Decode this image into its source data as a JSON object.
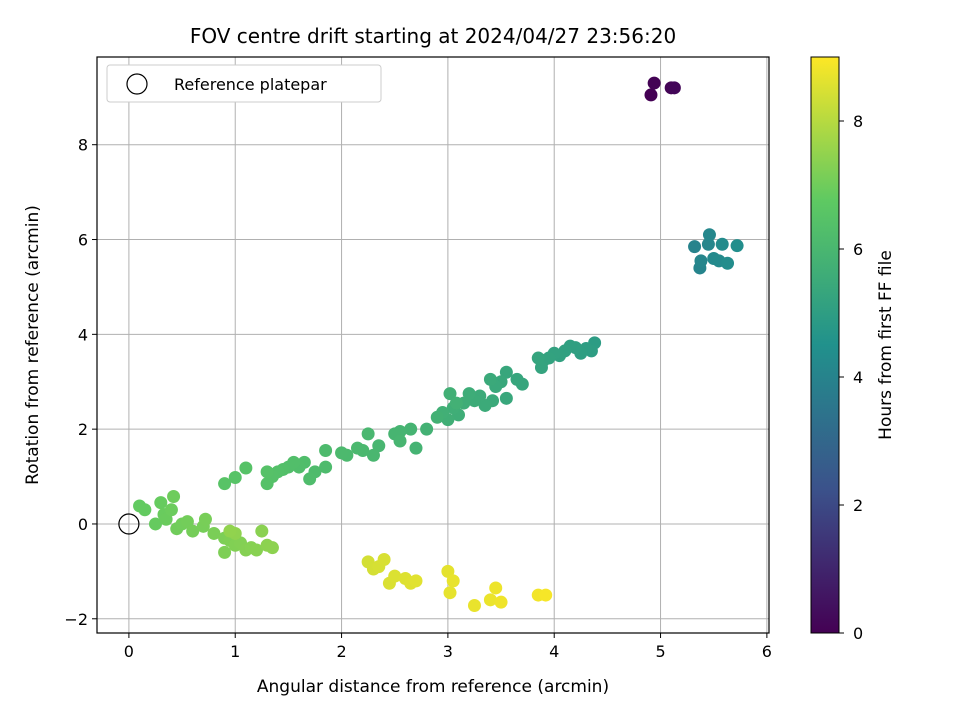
{
  "chart_data": {
    "type": "scatter",
    "title": "FOV centre drift starting at 2024/04/27 23:56:20",
    "xlabel": "Angular distance from reference (arcmin)",
    "ylabel": "Rotation from reference (arcmin)",
    "xlim": [
      -0.3,
      6.02
    ],
    "ylim": [
      -2.3,
      9.85
    ],
    "xticks": [
      0,
      1,
      2,
      3,
      4,
      5,
      6
    ],
    "yticks": [
      -2,
      0,
      2,
      4,
      6,
      8
    ],
    "grid": true,
    "legend": {
      "placement": "top-left",
      "entries": [
        "Reference platepar"
      ]
    },
    "reference_point": {
      "x": 0,
      "y": 0
    },
    "colorbar": {
      "label": "Hours from first FF file",
      "range": [
        0,
        9.0
      ],
      "ticks": [
        0,
        2,
        4,
        6,
        8
      ],
      "colormap": "viridis",
      "colors": [
        "#440154",
        "#3b528b",
        "#21918c",
        "#5ec962",
        "#fde725"
      ]
    },
    "points": [
      [
        4.91,
        9.05,
        0.0
      ],
      [
        4.94,
        9.3,
        0.05
      ],
      [
        5.1,
        9.2,
        0.1
      ],
      [
        5.13,
        9.2,
        0.15
      ],
      [
        5.32,
        5.85,
        4.0
      ],
      [
        5.37,
        5.4,
        4.05
      ],
      [
        5.38,
        5.55,
        4.1
      ],
      [
        5.45,
        5.9,
        4.1
      ],
      [
        5.46,
        6.1,
        4.15
      ],
      [
        5.5,
        5.6,
        4.2
      ],
      [
        5.55,
        5.55,
        4.25
      ],
      [
        5.58,
        5.9,
        4.3
      ],
      [
        5.63,
        5.5,
        4.35
      ],
      [
        5.72,
        5.87,
        4.4
      ],
      [
        4.38,
        3.82,
        4.95
      ],
      [
        4.35,
        3.65,
        4.97
      ],
      [
        4.3,
        3.7,
        5.0
      ],
      [
        4.25,
        3.6,
        5.02
      ],
      [
        4.2,
        3.72,
        5.05
      ],
      [
        4.15,
        3.75,
        5.07
      ],
      [
        4.1,
        3.65,
        5.1
      ],
      [
        4.05,
        3.55,
        5.12
      ],
      [
        4.0,
        3.6,
        5.15
      ],
      [
        3.95,
        3.5,
        5.17
      ],
      [
        3.9,
        3.45,
        5.2
      ],
      [
        3.88,
        3.3,
        5.22
      ],
      [
        3.85,
        3.5,
        5.25
      ],
      [
        3.7,
        2.95,
        5.3
      ],
      [
        3.65,
        3.05,
        5.32
      ],
      [
        3.55,
        3.2,
        5.35
      ],
      [
        3.55,
        2.65,
        5.37
      ],
      [
        3.5,
        3.0,
        5.4
      ],
      [
        3.45,
        2.9,
        5.42
      ],
      [
        3.4,
        3.05,
        5.45
      ],
      [
        3.42,
        2.6,
        5.47
      ],
      [
        3.35,
        2.5,
        5.5
      ],
      [
        3.3,
        2.7,
        5.52
      ],
      [
        3.25,
        2.6,
        5.55
      ],
      [
        3.2,
        2.75,
        5.57
      ],
      [
        3.15,
        2.55,
        5.6
      ],
      [
        3.1,
        2.3,
        5.62
      ],
      [
        3.05,
        2.45,
        5.65
      ],
      [
        3.0,
        2.2,
        5.67
      ],
      [
        2.95,
        2.35,
        5.7
      ],
      [
        3.02,
        2.75,
        5.72
      ],
      [
        3.08,
        2.55,
        5.74
      ],
      [
        2.9,
        2.25,
        5.76
      ],
      [
        2.8,
        2.0,
        5.8
      ],
      [
        2.7,
        1.6,
        5.85
      ],
      [
        2.65,
        2.0,
        5.87
      ],
      [
        2.55,
        1.95,
        5.9
      ],
      [
        2.5,
        1.9,
        5.92
      ],
      [
        2.55,
        1.75,
        5.94
      ],
      [
        2.35,
        1.65,
        5.97
      ],
      [
        2.3,
        1.45,
        6.0
      ],
      [
        2.25,
        1.9,
        6.02
      ],
      [
        2.2,
        1.55,
        6.05
      ],
      [
        2.15,
        1.6,
        6.07
      ],
      [
        2.05,
        1.45,
        6.1
      ],
      [
        2.0,
        1.5,
        6.12
      ],
      [
        1.85,
        1.55,
        6.15
      ],
      [
        1.85,
        1.2,
        6.17
      ],
      [
        1.75,
        1.1,
        6.2
      ],
      [
        1.7,
        0.95,
        6.22
      ],
      [
        1.65,
        1.3,
        6.25
      ],
      [
        1.6,
        1.2,
        6.27
      ],
      [
        1.55,
        1.3,
        6.3
      ],
      [
        1.5,
        1.2,
        6.32
      ],
      [
        1.45,
        1.15,
        6.35
      ],
      [
        1.4,
        1.1,
        6.37
      ],
      [
        1.35,
        1.0,
        6.4
      ],
      [
        1.3,
        0.85,
        6.42
      ],
      [
        1.3,
        1.1,
        6.44
      ],
      [
        1.1,
        1.18,
        6.47
      ],
      [
        1.0,
        0.98,
        6.5
      ],
      [
        0.9,
        0.85,
        6.52
      ],
      [
        0.1,
        0.38,
        6.8
      ],
      [
        0.15,
        0.3,
        6.82
      ],
      [
        0.25,
        0.0,
        6.85
      ],
      [
        0.3,
        0.45,
        6.87
      ],
      [
        0.33,
        0.2,
        6.9
      ],
      [
        0.35,
        0.1,
        6.92
      ],
      [
        0.4,
        0.3,
        6.95
      ],
      [
        0.42,
        0.58,
        6.97
      ],
      [
        0.45,
        -0.1,
        7.0
      ],
      [
        0.5,
        0.0,
        7.02
      ],
      [
        0.55,
        0.05,
        7.05
      ],
      [
        0.6,
        -0.15,
        7.07
      ],
      [
        0.7,
        -0.05,
        7.1
      ],
      [
        0.72,
        0.1,
        7.12
      ],
      [
        0.8,
        -0.2,
        7.15
      ],
      [
        0.9,
        -0.3,
        7.17
      ],
      [
        0.9,
        -0.6,
        7.2
      ],
      [
        0.95,
        -0.35,
        7.22
      ],
      [
        1.0,
        -0.45,
        7.25
      ],
      [
        1.05,
        -0.4,
        7.27
      ],
      [
        1.1,
        -0.55,
        7.3
      ],
      [
        1.15,
        -0.5,
        7.32
      ],
      [
        1.2,
        -0.55,
        7.35
      ],
      [
        1.25,
        -0.15,
        7.37
      ],
      [
        1.3,
        -0.45,
        7.4
      ],
      [
        1.35,
        -0.5,
        7.42
      ],
      [
        1.0,
        -0.2,
        7.45
      ],
      [
        0.95,
        -0.15,
        7.47
      ],
      [
        2.25,
        -0.8,
        8.4
      ],
      [
        2.3,
        -0.95,
        8.42
      ],
      [
        2.35,
        -0.9,
        8.45
      ],
      [
        2.4,
        -0.75,
        8.47
      ],
      [
        2.45,
        -1.25,
        8.5
      ],
      [
        2.5,
        -1.1,
        8.52
      ],
      [
        2.6,
        -1.15,
        8.55
      ],
      [
        2.65,
        -1.25,
        8.57
      ],
      [
        2.7,
        -1.2,
        8.6
      ],
      [
        3.0,
        -1.0,
        8.65
      ],
      [
        3.02,
        -1.45,
        8.67
      ],
      [
        3.05,
        -1.2,
        8.7
      ],
      [
        3.25,
        -1.72,
        8.72
      ],
      [
        3.4,
        -1.6,
        8.75
      ],
      [
        3.45,
        -1.35,
        8.77
      ],
      [
        3.5,
        -1.65,
        8.8
      ],
      [
        3.85,
        -1.5,
        8.85
      ],
      [
        3.92,
        -1.5,
        8.9
      ]
    ]
  }
}
